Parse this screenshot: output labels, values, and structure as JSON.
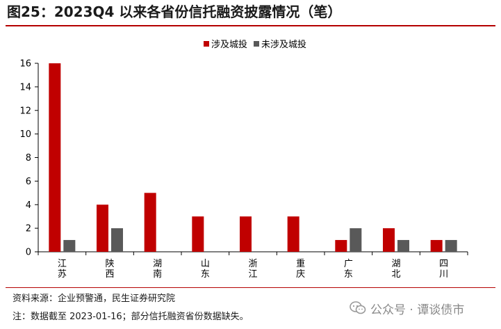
{
  "header": {
    "title": "图25：2023Q4 以来各省份信托融资披露情况（笔）"
  },
  "footer": {
    "source": "资料来源：企业预警通，民生证券研究院",
    "note": "注：数据截至 2023-01-16；部分信托融资省份数据缺失。"
  },
  "watermark": {
    "text": "公众号 · 谭谈债市",
    "icon": "wechat-icon"
  },
  "colors": {
    "series1": "#c00000",
    "series2": "#595959",
    "accent": "#b40000"
  },
  "chart_data": {
    "type": "bar",
    "categories": [
      "江苏",
      "陕西",
      "湖南",
      "山东",
      "浙江",
      "重庆",
      "广东",
      "湖北",
      "四川"
    ],
    "series": [
      {
        "name": "涉及城投",
        "values": [
          16,
          4,
          5,
          3,
          3,
          3,
          1,
          2,
          1
        ]
      },
      {
        "name": "未涉及城投",
        "values": [
          1,
          2,
          0,
          0,
          0,
          0,
          2,
          1,
          1
        ]
      }
    ],
    "y_ticks": [
      0,
      2,
      4,
      6,
      8,
      10,
      12,
      14,
      16
    ],
    "ylim": [
      0,
      16
    ],
    "grid": false,
    "legend_position": "top-right"
  }
}
